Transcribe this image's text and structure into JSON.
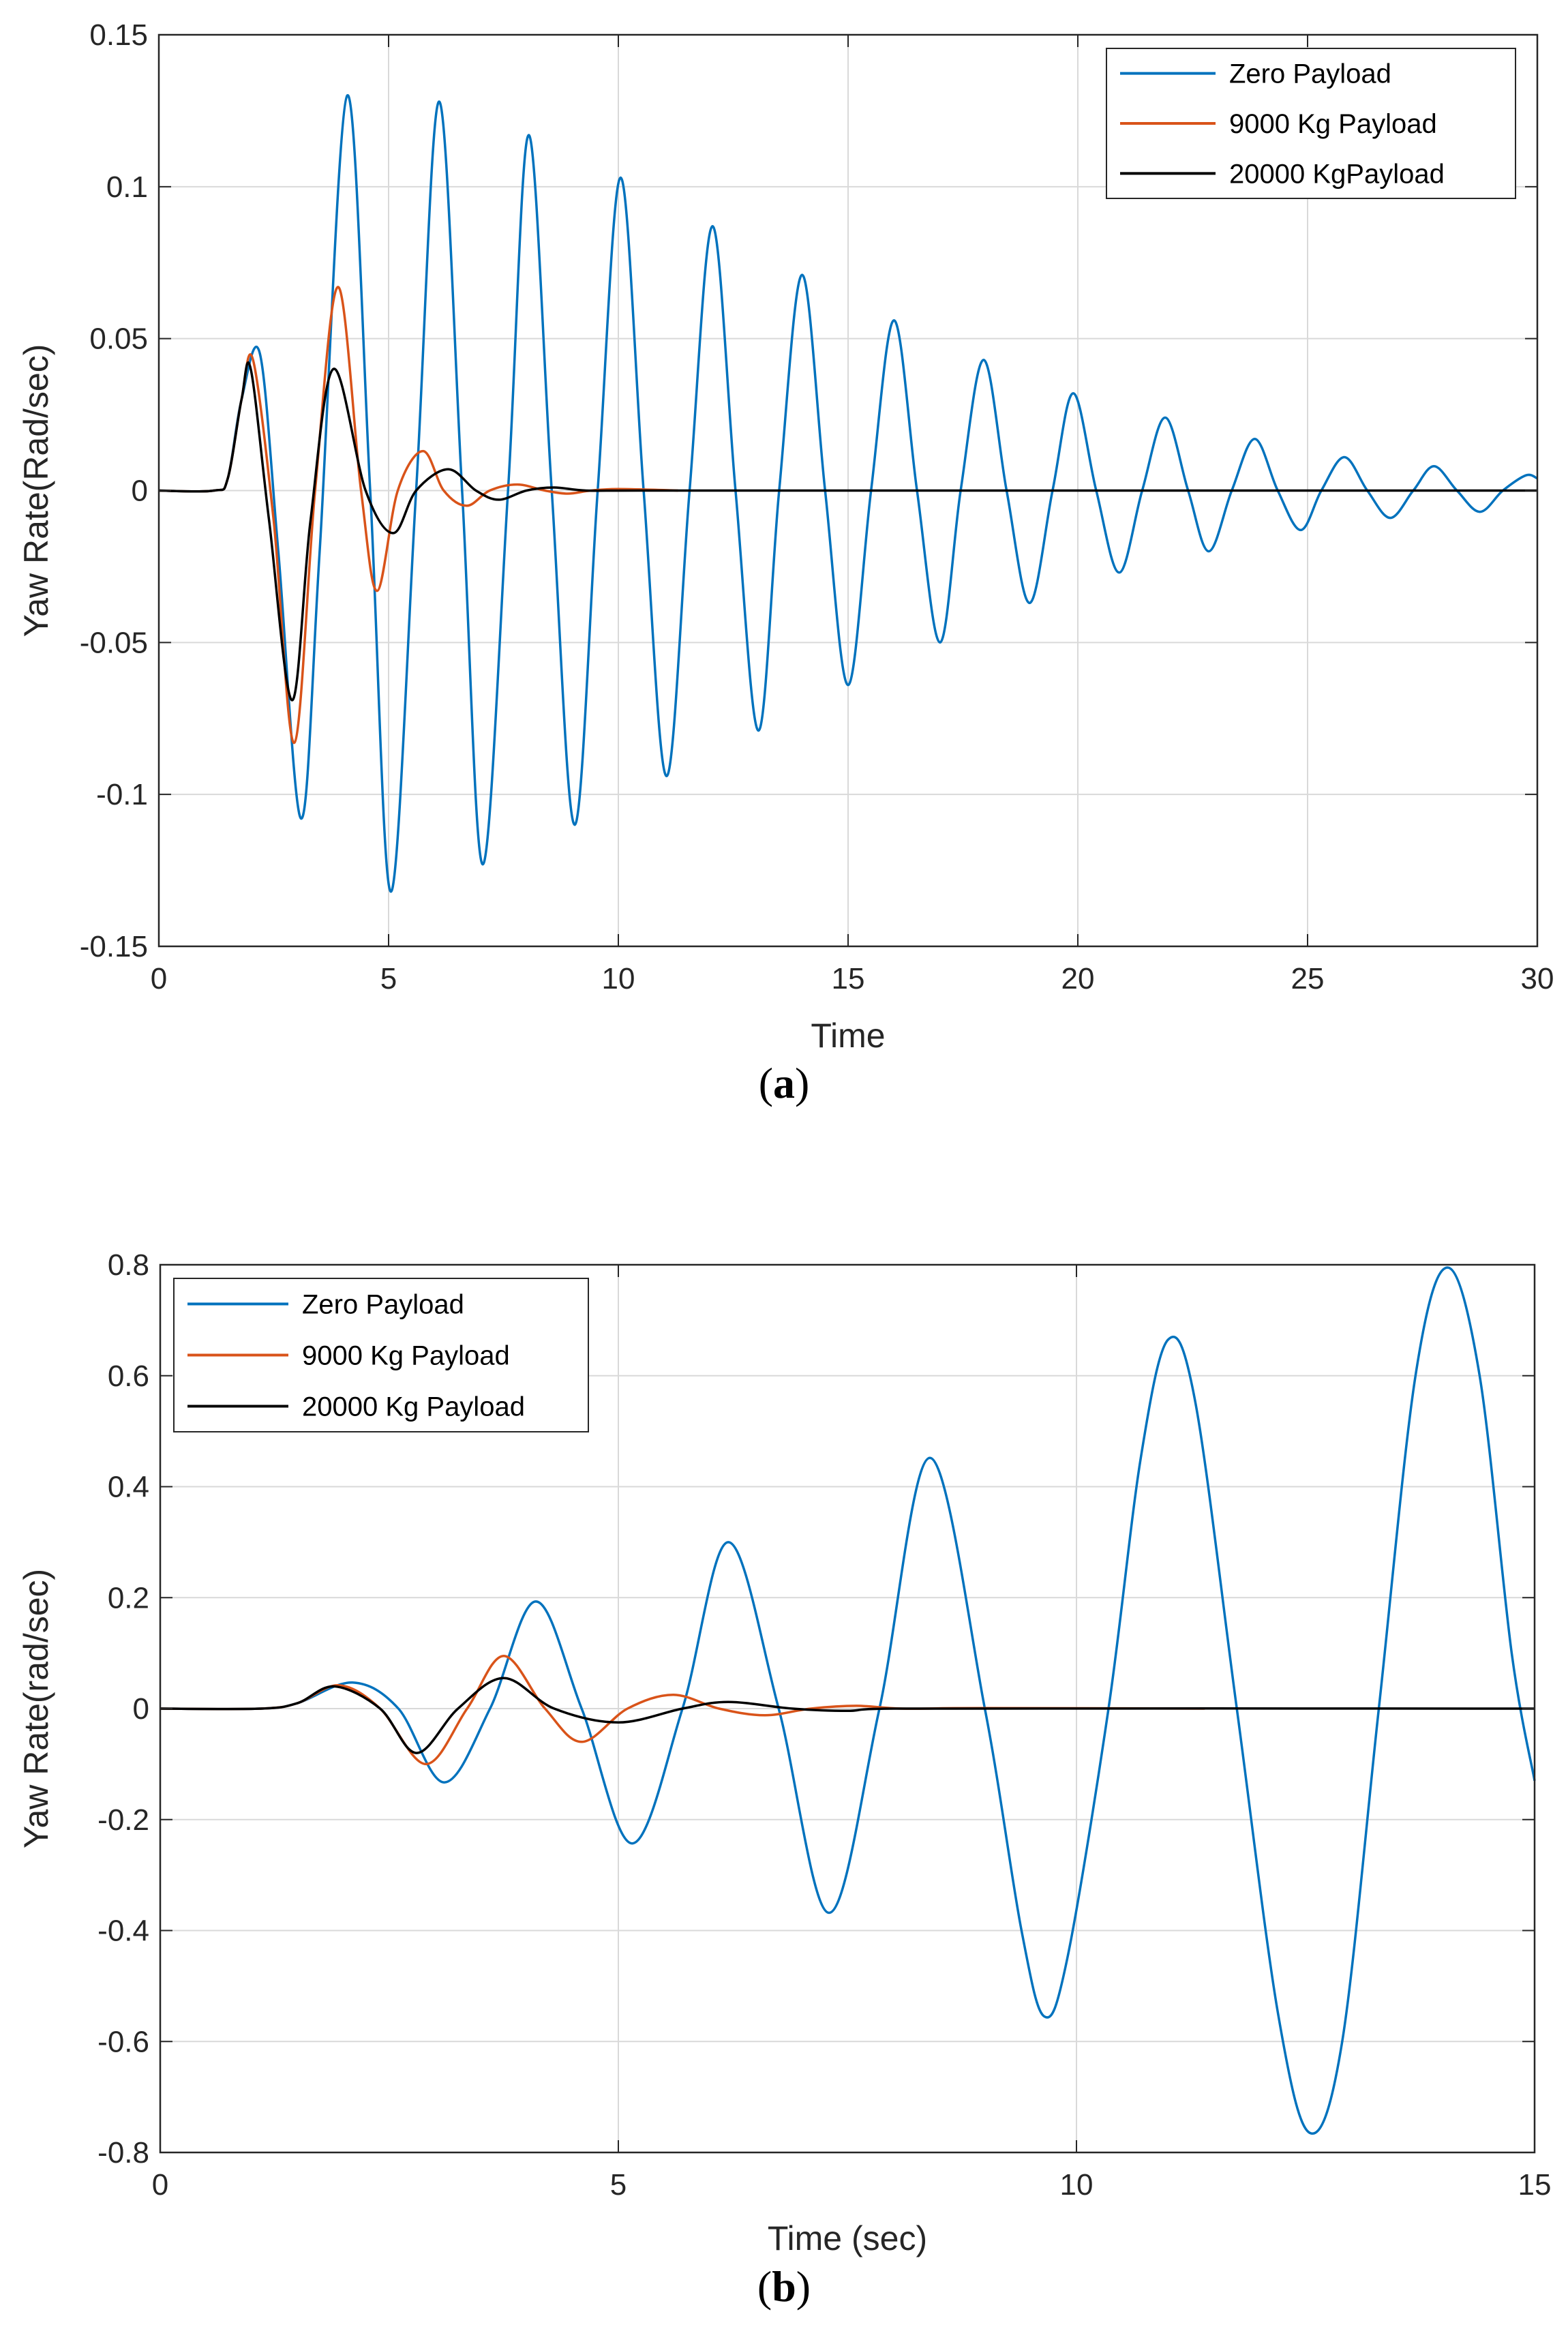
{
  "chart_data": [
    {
      "type": "line",
      "caption_letter": "a",
      "xlabel": "Time",
      "ylabel": "Yaw Rate(Rad/sec)",
      "xlim": [
        0,
        30
      ],
      "ylim": [
        -0.15,
        0.15
      ],
      "xticks": [
        0,
        5,
        10,
        15,
        20,
        25,
        30
      ],
      "yticks": [
        -0.15,
        -0.1,
        -0.05,
        0,
        0.05,
        0.1,
        0.15
      ],
      "ytick_labels": [
        "-0.15",
        "-0.1",
        "-0.05",
        "0",
        "0.05",
        "0.1",
        "0.15"
      ],
      "grid": true,
      "legend_position": "top-right",
      "series": [
        {
          "name": "Zero Payload",
          "color": "#0072BD",
          "points": [
            [
              0,
              0
            ],
            [
              1.2,
              0
            ],
            [
              1.5,
              0.004
            ],
            [
              1.8,
              0.03
            ],
            [
              2.2,
              0.045
            ],
            [
              2.6,
              -0.02
            ],
            [
              3.1,
              -0.108
            ],
            [
              3.5,
              -0.02
            ],
            [
              4.1,
              0.13
            ],
            [
              4.6,
              0.0
            ],
            [
              5.05,
              -0.132
            ],
            [
              5.6,
              0.0
            ],
            [
              6.1,
              0.128
            ],
            [
              6.6,
              0.0
            ],
            [
              7.05,
              -0.123
            ],
            [
              7.6,
              0.0
            ],
            [
              8.05,
              0.117
            ],
            [
              8.55,
              0.0
            ],
            [
              9.05,
              -0.11
            ],
            [
              9.55,
              0.0
            ],
            [
              10.05,
              0.103
            ],
            [
              10.55,
              0.0
            ],
            [
              11.05,
              -0.094
            ],
            [
              11.55,
              0.0
            ],
            [
              12.05,
              0.087
            ],
            [
              12.55,
              0.0
            ],
            [
              13.05,
              -0.079
            ],
            [
              13.5,
              0.0
            ],
            [
              14.0,
              0.071
            ],
            [
              14.5,
              0.0
            ],
            [
              15.0,
              -0.064
            ],
            [
              15.5,
              0.0
            ],
            [
              16.0,
              0.056
            ],
            [
              16.5,
              0.0
            ],
            [
              17.0,
              -0.05
            ],
            [
              17.45,
              0.0
            ],
            [
              17.95,
              0.043
            ],
            [
              18.45,
              0.0
            ],
            [
              18.95,
              -0.037
            ],
            [
              19.45,
              0.0
            ],
            [
              19.9,
              0.032
            ],
            [
              20.4,
              0.0
            ],
            [
              20.9,
              -0.027
            ],
            [
              21.4,
              0.0
            ],
            [
              21.9,
              0.024
            ],
            [
              22.4,
              0.0
            ],
            [
              22.85,
              -0.02
            ],
            [
              23.35,
              0.0
            ],
            [
              23.85,
              0.017
            ],
            [
              24.35,
              0.0
            ],
            [
              24.85,
              -0.013
            ],
            [
              25.3,
              0.0
            ],
            [
              25.8,
              0.011
            ],
            [
              26.3,
              0.0
            ],
            [
              26.8,
              -0.009
            ],
            [
              27.3,
              0.0
            ],
            [
              27.75,
              0.008
            ],
            [
              28.25,
              0.0
            ],
            [
              28.75,
              -0.007
            ],
            [
              29.25,
              0.0
            ],
            [
              29.75,
              0.005
            ],
            [
              30.0,
              0.004
            ]
          ]
        },
        {
          "name": "9000 Kg Payload",
          "color": "#D95319",
          "points": [
            [
              0,
              0
            ],
            [
              1.2,
              0
            ],
            [
              1.5,
              0.004
            ],
            [
              1.8,
              0.03
            ],
            [
              2.05,
              0.043
            ],
            [
              2.5,
              -0.01
            ],
            [
              2.95,
              -0.083
            ],
            [
              3.4,
              0.0
            ],
            [
              3.9,
              0.067
            ],
            [
              4.4,
              0.0
            ],
            [
              4.75,
              -0.033
            ],
            [
              5.2,
              0.0
            ],
            [
              5.75,
              0.013
            ],
            [
              6.2,
              0.0
            ],
            [
              6.7,
              -0.005
            ],
            [
              7.2,
              0.0
            ],
            [
              7.8,
              0.002
            ],
            [
              8.4,
              0.0
            ],
            [
              8.9,
              -0.001
            ],
            [
              9.4,
              0.0
            ],
            [
              10.0,
              0.0005
            ],
            [
              11.3,
              0.0
            ]
          ]
        },
        {
          "name": "20000 KgPayload",
          "color": "#000000",
          "points": [
            [
              0,
              0
            ],
            [
              1.2,
              0
            ],
            [
              1.5,
              0.004
            ],
            [
              1.8,
              0.03
            ],
            [
              2.0,
              0.04
            ],
            [
              2.4,
              -0.01
            ],
            [
              2.9,
              -0.069
            ],
            [
              3.3,
              -0.01
            ],
            [
              3.8,
              0.04
            ],
            [
              4.5,
              0.0
            ],
            [
              5.1,
              -0.014
            ],
            [
              5.6,
              0.0
            ],
            [
              6.3,
              0.007
            ],
            [
              6.9,
              0.0
            ],
            [
              7.4,
              -0.003
            ],
            [
              8.0,
              0.0
            ],
            [
              8.6,
              0.001
            ],
            [
              9.3,
              0.0
            ],
            [
              10.5,
              0.0
            ],
            [
              30.0,
              0.0
            ]
          ]
        }
      ]
    },
    {
      "type": "line",
      "caption_letter": "b",
      "xlabel": "Time (sec)",
      "ylabel": "Yaw Rate(rad/sec)",
      "xlim": [
        0,
        15
      ],
      "ylim": [
        -0.8,
        0.8
      ],
      "xticks": [
        0,
        5,
        10,
        15
      ],
      "yticks": [
        -0.8,
        -0.6,
        -0.4,
        -0.2,
        0,
        0.2,
        0.4,
        0.6,
        0.8
      ],
      "ytick_labels": [
        "-0.8",
        "-0.6",
        "-0.4",
        "-0.2",
        "0",
        "0.2",
        "0.4",
        "0.6",
        "0.8"
      ],
      "grid": true,
      "legend_position": "top-left",
      "series": [
        {
          "name": "Zero Payload",
          "color": "#0072BD",
          "points": [
            [
              0,
              0
            ],
            [
              1.1,
              0
            ],
            [
              1.5,
              0.01
            ],
            [
              2.1,
              0.047
            ],
            [
              2.6,
              0.0
            ],
            [
              3.1,
              -0.133
            ],
            [
              3.6,
              0.0
            ],
            [
              4.1,
              0.193
            ],
            [
              4.6,
              0.0
            ],
            [
              5.15,
              -0.243
            ],
            [
              5.7,
              0.0
            ],
            [
              6.2,
              0.3
            ],
            [
              6.75,
              0.0
            ],
            [
              7.3,
              -0.368
            ],
            [
              7.85,
              0.0
            ],
            [
              8.4,
              0.452
            ],
            [
              9.0,
              0.0
            ],
            [
              9.4,
              -0.4
            ],
            [
              9.65,
              -0.555
            ],
            [
              9.9,
              -0.45
            ],
            [
              10.35,
              0.0
            ],
            [
              10.7,
              0.45
            ],
            [
              11.0,
              0.665
            ],
            [
              11.3,
              0.55
            ],
            [
              11.75,
              0.0
            ],
            [
              12.2,
              -0.55
            ],
            [
              12.55,
              -0.765
            ],
            [
              12.9,
              -0.6
            ],
            [
              13.3,
              0.0
            ],
            [
              13.7,
              0.6
            ],
            [
              14.05,
              0.795
            ],
            [
              14.4,
              0.6
            ],
            [
              14.75,
              0.1
            ],
            [
              15.0,
              -0.13
            ]
          ]
        },
        {
          "name": "9000 Kg Payload",
          "color": "#D95319",
          "points": [
            [
              0,
              0
            ],
            [
              1.1,
              0
            ],
            [
              1.5,
              0.01
            ],
            [
              1.95,
              0.042
            ],
            [
              2.4,
              0.0
            ],
            [
              2.9,
              -0.1
            ],
            [
              3.35,
              0.0
            ],
            [
              3.75,
              0.095
            ],
            [
              4.2,
              0.0
            ],
            [
              4.6,
              -0.06
            ],
            [
              5.1,
              0.0
            ],
            [
              5.6,
              0.025
            ],
            [
              6.1,
              0.0
            ],
            [
              6.6,
              -0.012
            ],
            [
              7.1,
              0.0
            ],
            [
              7.6,
              0.005
            ],
            [
              8.1,
              0.0
            ],
            [
              9.0,
              0.001
            ],
            [
              11.4,
              0.0
            ]
          ]
        },
        {
          "name": "20000 Kg Payload",
          "color": "#000000",
          "points": [
            [
              0,
              0
            ],
            [
              1.1,
              0
            ],
            [
              1.5,
              0.01
            ],
            [
              1.9,
              0.04
            ],
            [
              2.4,
              0.0
            ],
            [
              2.8,
              -0.08
            ],
            [
              3.25,
              0.0
            ],
            [
              3.75,
              0.055
            ],
            [
              4.3,
              0.0
            ],
            [
              5.0,
              -0.025
            ],
            [
              5.7,
              0.0
            ],
            [
              6.2,
              0.012
            ],
            [
              6.9,
              0.0
            ],
            [
              7.5,
              -0.004
            ],
            [
              8.0,
              0.0
            ],
            [
              15.0,
              0.0
            ]
          ]
        }
      ]
    }
  ]
}
